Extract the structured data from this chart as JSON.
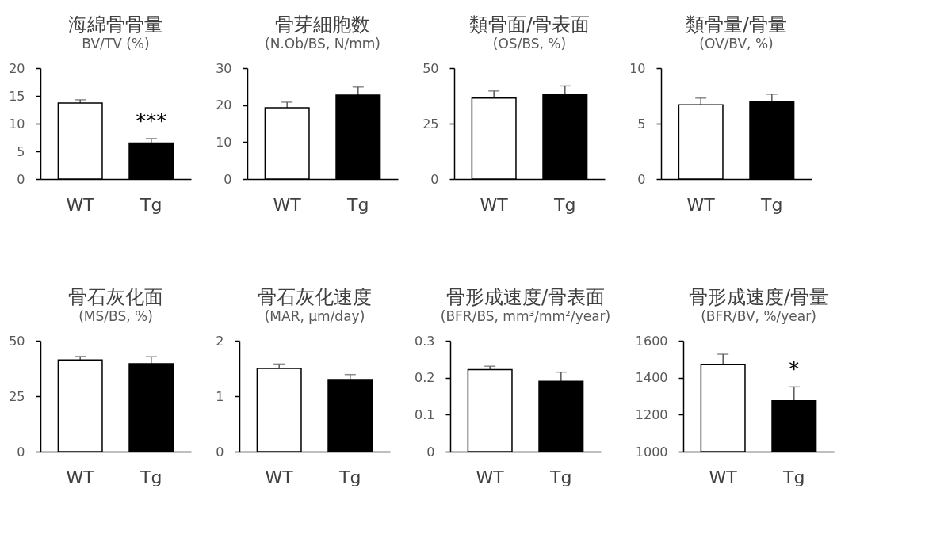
{
  "chart_data": [
    {
      "type": "bar",
      "title": "海綿骨骨量",
      "subtitle": "BV/TV (%)",
      "categories": [
        "WT",
        "Tg"
      ],
      "values": [
        13.7,
        6.5
      ],
      "errors": [
        0.6,
        0.8
      ],
      "colors": [
        "#ffffff",
        "#000000"
      ],
      "ylim": [
        0,
        20
      ],
      "yticks": [
        0,
        5,
        10,
        15,
        20
      ],
      "annotations": [
        "***"
      ]
    },
    {
      "type": "bar",
      "title": "骨芽細胞数",
      "subtitle": "(N.Ob/BS, N/mm)",
      "categories": [
        "WT",
        "Tg"
      ],
      "values": [
        19.3,
        22.7
      ],
      "errors": [
        1.5,
        2.2
      ],
      "colors": [
        "#ffffff",
        "#000000"
      ],
      "ylim": [
        0,
        30
      ],
      "yticks": [
        0,
        10,
        20,
        30
      ]
    },
    {
      "type": "bar",
      "title": "類骨面/骨表面",
      "subtitle": "(OS/BS, %)",
      "categories": [
        "WT",
        "Tg"
      ],
      "values": [
        36.5,
        38
      ],
      "errors": [
        3.2,
        4
      ],
      "colors": [
        "#ffffff",
        "#000000"
      ],
      "ylim": [
        0,
        50
      ],
      "yticks": [
        0,
        25,
        50
      ]
    },
    {
      "type": "bar",
      "title": "類骨量/骨量",
      "subtitle": "(OV/BV, %)",
      "categories": [
        "WT",
        "Tg"
      ],
      "values": [
        6.7,
        7.0
      ],
      "errors": [
        0.6,
        0.65
      ],
      "colors": [
        "#ffffff",
        "#000000"
      ],
      "ylim": [
        0,
        10
      ],
      "yticks": [
        0,
        5,
        10
      ]
    },
    {
      "type": "bar",
      "title": "骨石灰化面",
      "subtitle": "(MS/BS, %)",
      "categories": [
        "WT",
        "Tg"
      ],
      "values": [
        41.3,
        39.6
      ],
      "errors": [
        1.6,
        3.2
      ],
      "colors": [
        "#ffffff",
        "#000000"
      ],
      "ylim": [
        0,
        50
      ],
      "yticks": [
        0,
        25,
        50
      ]
    },
    {
      "type": "bar",
      "title": "骨石灰化速度",
      "subtitle": "(MAR, μm/day)",
      "categories": [
        "WT",
        "Tg"
      ],
      "values": [
        1.5,
        1.3
      ],
      "errors": [
        0.08,
        0.09
      ],
      "colors": [
        "#ffffff",
        "#000000"
      ],
      "ylim": [
        0,
        2
      ],
      "yticks": [
        {
          "value": 0,
          "label": "0"
        },
        {
          "value": 1,
          "label": "1"
        },
        {
          "value": 2,
          "label": "2"
        }
      ]
    },
    {
      "type": "bar",
      "title": "骨形成速度/骨表面",
      "subtitle": "(BFR/BS, mm³/mm²/year)",
      "categories": [
        "WT",
        "Tg"
      ],
      "values": [
        0.222,
        0.19
      ],
      "errors": [
        0.009,
        0.025
      ],
      "colors": [
        "#ffffff",
        "#000000"
      ],
      "ylim": [
        0,
        0.3
      ],
      "yticks": [
        {
          "value": 0,
          "label": "0"
        },
        0.1,
        0.2,
        0.3
      ]
    },
    {
      "type": "bar",
      "title": "骨形成速度/骨量",
      "subtitle": "(BFR/BV, %/year)",
      "categories": [
        "WT",
        "Tg"
      ],
      "values": [
        1472,
        1275
      ],
      "errors": [
        55,
        75
      ],
      "colors": [
        "#ffffff",
        "#000000"
      ],
      "ylim": [
        1000,
        1600
      ],
      "yticks": [
        1000,
        1200,
        1400,
        1600
      ],
      "annotations": [
        "*"
      ]
    }
  ]
}
